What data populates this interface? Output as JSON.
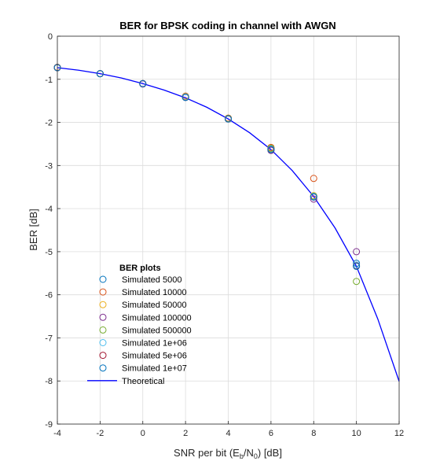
{
  "chart_data": {
    "type": "scatter",
    "title": "BER for BPSK coding in channel with AWGN",
    "xlabel": {
      "main": "SNR per bit (E",
      "sub1": "b",
      "mid": "/N",
      "sub2": "0",
      "tail": ") [dB]"
    },
    "ylabel": "BER [dB]",
    "xlim": [
      -4,
      12
    ],
    "ylim": [
      -9,
      0
    ],
    "x_ticks": [
      -4,
      -2,
      0,
      2,
      4,
      6,
      8,
      10,
      12
    ],
    "y_ticks": [
      0,
      -1,
      -2,
      -3,
      -4,
      -5,
      -6,
      -7,
      -8,
      -9
    ],
    "grid": true,
    "legend_title": "BER plots",
    "legend_position": "lower-left",
    "series": [
      {
        "name": "Simulated 5000",
        "marker": "circle",
        "color": "#0072BD",
        "points": [
          [
            -4,
            -0.73
          ],
          [
            -2,
            -0.87
          ],
          [
            0,
            -1.1
          ],
          [
            2,
            -1.42
          ],
          [
            4,
            -1.92
          ],
          [
            6,
            -2.62
          ],
          [
            8,
            -3.72
          ],
          [
            10,
            -5.27
          ]
        ]
      },
      {
        "name": "Simulated 10000",
        "marker": "circle",
        "color": "#D95319",
        "points": [
          [
            -4,
            -0.72
          ],
          [
            -2,
            -0.87
          ],
          [
            0,
            -1.1
          ],
          [
            2,
            -1.39
          ],
          [
            4,
            -1.9
          ],
          [
            6,
            -2.58
          ],
          [
            8,
            -3.3
          ]
        ]
      },
      {
        "name": "Simulated 50000",
        "marker": "circle",
        "color": "#EDB120",
        "points": [
          [
            -4,
            -0.73
          ],
          [
            -2,
            -0.87
          ],
          [
            0,
            -1.1
          ],
          [
            2,
            -1.4
          ],
          [
            4,
            -1.91
          ],
          [
            6,
            -2.6
          ],
          [
            8,
            -3.7
          ]
        ]
      },
      {
        "name": "Simulated 100000",
        "marker": "circle",
        "color": "#7E2F8E",
        "points": [
          [
            -4,
            -0.73
          ],
          [
            -2,
            -0.87
          ],
          [
            0,
            -1.11
          ],
          [
            2,
            -1.41
          ],
          [
            4,
            -1.92
          ],
          [
            6,
            -2.65
          ],
          [
            8,
            -3.78
          ],
          [
            10,
            -5.0
          ]
        ]
      },
      {
        "name": "Simulated 500000",
        "marker": "circle",
        "color": "#77AC30",
        "points": [
          [
            -4,
            -0.73
          ],
          [
            -2,
            -0.87
          ],
          [
            0,
            -1.1
          ],
          [
            2,
            -1.41
          ],
          [
            4,
            -1.91
          ],
          [
            6,
            -2.6
          ],
          [
            8,
            -3.71
          ],
          [
            10,
            -5.69
          ]
        ]
      },
      {
        "name": "Simulated 1e+06",
        "marker": "circle",
        "color": "#4DBEEE",
        "points": [
          [
            -4,
            -0.73
          ],
          [
            -2,
            -0.87
          ],
          [
            0,
            -1.1
          ],
          [
            2,
            -1.41
          ],
          [
            4,
            -1.92
          ],
          [
            6,
            -2.62
          ],
          [
            8,
            -3.72
          ],
          [
            10,
            -5.31
          ]
        ]
      },
      {
        "name": "Simulated 5e+06",
        "marker": "circle",
        "color": "#A2142F",
        "points": [
          [
            -4,
            -0.73
          ],
          [
            -2,
            -0.87
          ],
          [
            0,
            -1.1
          ],
          [
            2,
            -1.42
          ],
          [
            4,
            -1.92
          ],
          [
            6,
            -2.63
          ],
          [
            8,
            -3.73
          ],
          [
            10,
            -5.33
          ]
        ]
      },
      {
        "name": "Simulated 1e+07",
        "marker": "circle",
        "color": "#0072BD",
        "points": [
          [
            -4,
            -0.73
          ],
          [
            -2,
            -0.87
          ],
          [
            0,
            -1.1
          ],
          [
            2,
            -1.42
          ],
          [
            4,
            -1.92
          ],
          [
            6,
            -2.63
          ],
          [
            8,
            -3.73
          ],
          [
            10,
            -5.34
          ]
        ]
      }
    ],
    "theoretical": {
      "name": "Theoretical",
      "color": "#0000FF",
      "x": [
        -4,
        -3,
        -2,
        -1,
        0,
        1,
        2,
        3,
        4,
        5,
        6,
        7,
        8,
        9,
        10,
        11,
        12
      ],
      "y": [
        -0.73,
        -0.79,
        -0.87,
        -0.97,
        -1.1,
        -1.25,
        -1.43,
        -1.65,
        -1.92,
        -2.24,
        -2.63,
        -3.12,
        -3.72,
        -4.45,
        -5.34,
        -6.56,
        -8.01
      ]
    }
  }
}
